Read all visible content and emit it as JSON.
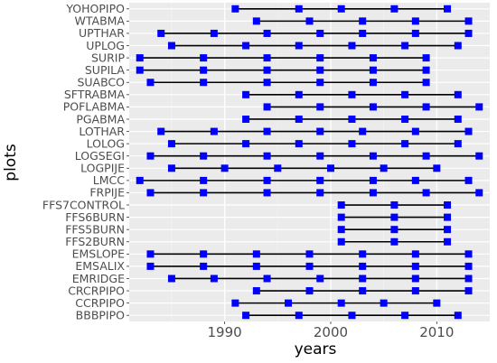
{
  "chart_data": {
    "type": "scatter",
    "title": "",
    "xlabel": "years",
    "ylabel": "plots",
    "xlim": [
      1981,
      2015
    ],
    "xticks": [
      1990,
      2000,
      2010
    ],
    "grid": true,
    "series_color": "#0000ff",
    "line_color": "#000000",
    "panel_color": "#ebebeb",
    "categories": [
      "YOHOPIPO",
      "WTABMA",
      "UPTHAR",
      "UPLOG",
      "SURIP",
      "SUPILA",
      "SUABCO",
      "SFTRABMA",
      "POFLABMA",
      "PGABMA",
      "LOTHAR",
      "LOLOG",
      "LOGSEGI",
      "LOGPIJE",
      "LMCC",
      "FRPIJE",
      "FFS7CONTROL",
      "FFS6BURN",
      "FFS5BURN",
      "FFS2BURN",
      "EMSLOPE",
      "EMSALIX",
      "EMRIDGE",
      "CRCRPIPO",
      "CCRPIPO",
      "BBBPIPO"
    ],
    "series": [
      {
        "plot": "YOHOPIPO",
        "years": [
          1991,
          1997,
          2001,
          2006,
          2011
        ]
      },
      {
        "plot": "WTABMA",
        "years": [
          1993,
          1998,
          2003,
          2008,
          2013
        ]
      },
      {
        "plot": "UPTHAR",
        "years": [
          1984,
          1989,
          1994,
          1999,
          2003,
          2008,
          2013
        ]
      },
      {
        "plot": "UPLOG",
        "years": [
          1985,
          1992,
          1997,
          2002,
          2007,
          2012
        ]
      },
      {
        "plot": "SURIP",
        "years": [
          1982,
          1988,
          1994,
          1999,
          2004,
          2009
        ]
      },
      {
        "plot": "SUPILA",
        "years": [
          1982,
          1988,
          1994,
          1999,
          2004,
          2009
        ]
      },
      {
        "plot": "SUABCO",
        "years": [
          1983,
          1988,
          1994,
          1999,
          2004,
          2009
        ]
      },
      {
        "plot": "SFTRABMA",
        "years": [
          1992,
          1997,
          2002,
          2007,
          2012
        ]
      },
      {
        "plot": "POFLABMA",
        "years": [
          1994,
          1999,
          2004,
          2009,
          2014
        ]
      },
      {
        "plot": "PGABMA",
        "years": [
          1992,
          1997,
          2002,
          2007,
          2012
        ]
      },
      {
        "plot": "LOTHAR",
        "years": [
          1984,
          1989,
          1994,
          1999,
          2003,
          2008,
          2013
        ]
      },
      {
        "plot": "LOLOG",
        "years": [
          1985,
          1992,
          1997,
          2002,
          2007,
          2012
        ]
      },
      {
        "plot": "LOGSEGI",
        "years": [
          1983,
          1988,
          1994,
          1999,
          2004,
          2009,
          2014
        ]
      },
      {
        "plot": "LOGPIJE",
        "years": [
          1985,
          1990,
          1995,
          2000,
          2005,
          2010
        ]
      },
      {
        "plot": "LMCC",
        "years": [
          1982,
          1988,
          1994,
          1999,
          2004,
          2008,
          2013
        ]
      },
      {
        "plot": "FRPIJE",
        "years": [
          1983,
          1988,
          1994,
          1999,
          2004,
          2009,
          2014
        ]
      },
      {
        "plot": "FFS7CONTROL",
        "years": [
          2001,
          2006,
          2011
        ]
      },
      {
        "plot": "FFS6BURN",
        "years": [
          2001,
          2006,
          2011
        ]
      },
      {
        "plot": "FFS5BURN",
        "years": [
          2001,
          2006,
          2011
        ]
      },
      {
        "plot": "FFS2BURN",
        "years": [
          2001,
          2006,
          2011
        ]
      },
      {
        "plot": "EMSLOPE",
        "years": [
          1983,
          1988,
          1993,
          1998,
          2003,
          2008,
          2013
        ]
      },
      {
        "plot": "EMSALIX",
        "years": [
          1983,
          1988,
          1993,
          1998,
          2003,
          2008,
          2013
        ]
      },
      {
        "plot": "EMRIDGE",
        "years": [
          1985,
          1989,
          1994,
          1999,
          2003,
          2008,
          2013
        ]
      },
      {
        "plot": "CRCRPIPO",
        "years": [
          1993,
          1998,
          2003,
          2008,
          2013
        ]
      },
      {
        "plot": "CCRPIPO",
        "years": [
          1991,
          1996,
          2001,
          2005,
          2010
        ]
      },
      {
        "plot": "BBBPIPO",
        "years": [
          1992,
          1997,
          2002,
          2007,
          2012
        ]
      }
    ]
  }
}
